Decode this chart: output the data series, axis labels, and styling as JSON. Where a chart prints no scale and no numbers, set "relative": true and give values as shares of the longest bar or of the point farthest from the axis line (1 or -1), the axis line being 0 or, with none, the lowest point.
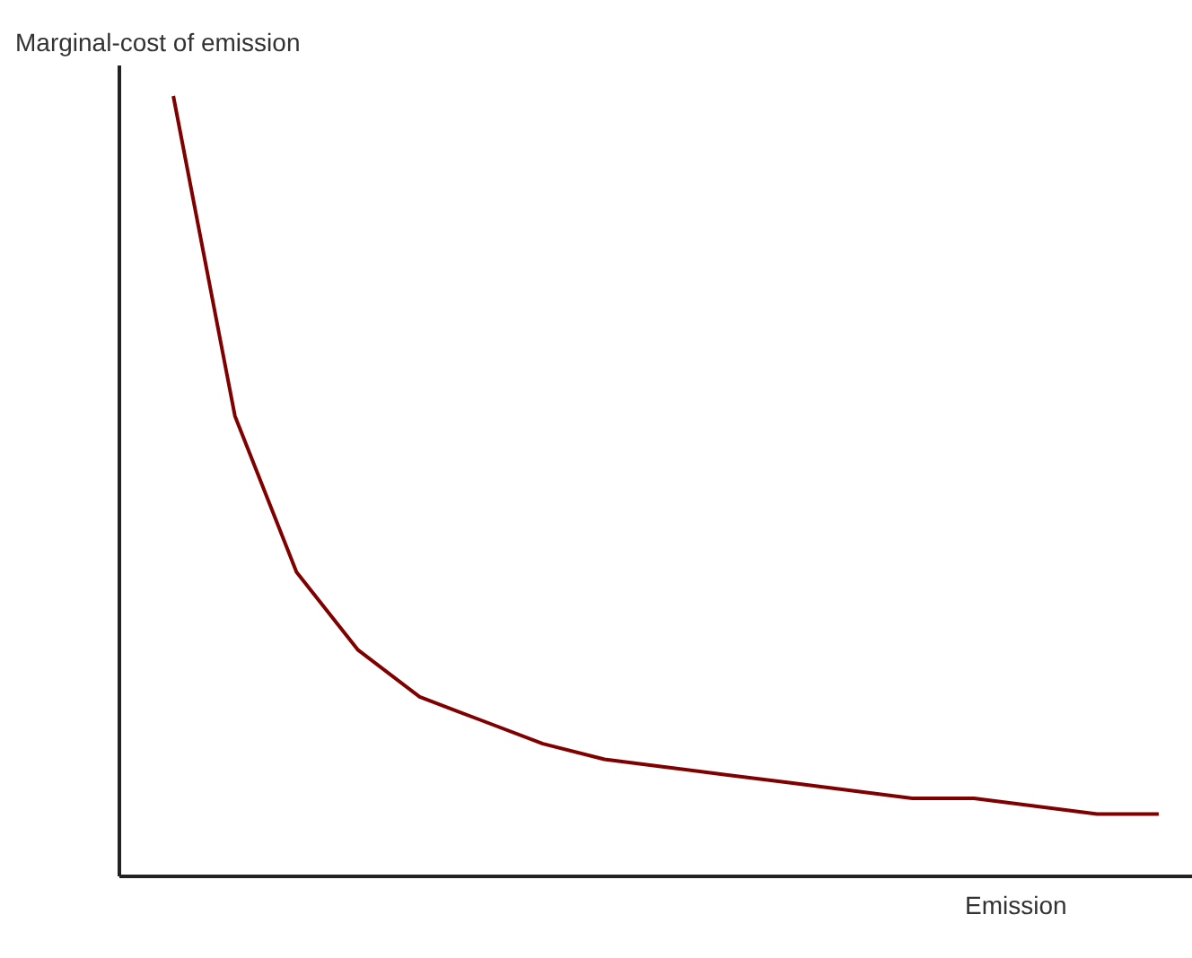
{
  "chart_data": {
    "type": "line",
    "ylabel": "Marginal-cost of emission",
    "xlabel": "Emission",
    "relative": true,
    "categories": [
      null,
      null,
      null,
      null,
      null,
      null,
      null,
      null,
      null,
      null,
      null,
      null,
      null,
      null,
      null,
      null,
      null
    ],
    "series": [
      {
        "color": "#800000",
        "values": [
          1,
          0.59,
          0.39,
          0.29,
          0.23,
          0.2,
          0.17,
          0.15,
          0.14,
          0.13,
          0.12,
          0.11,
          0.1,
          0.1,
          0.09,
          0.08,
          0.08
        ]
      }
    ]
  }
}
